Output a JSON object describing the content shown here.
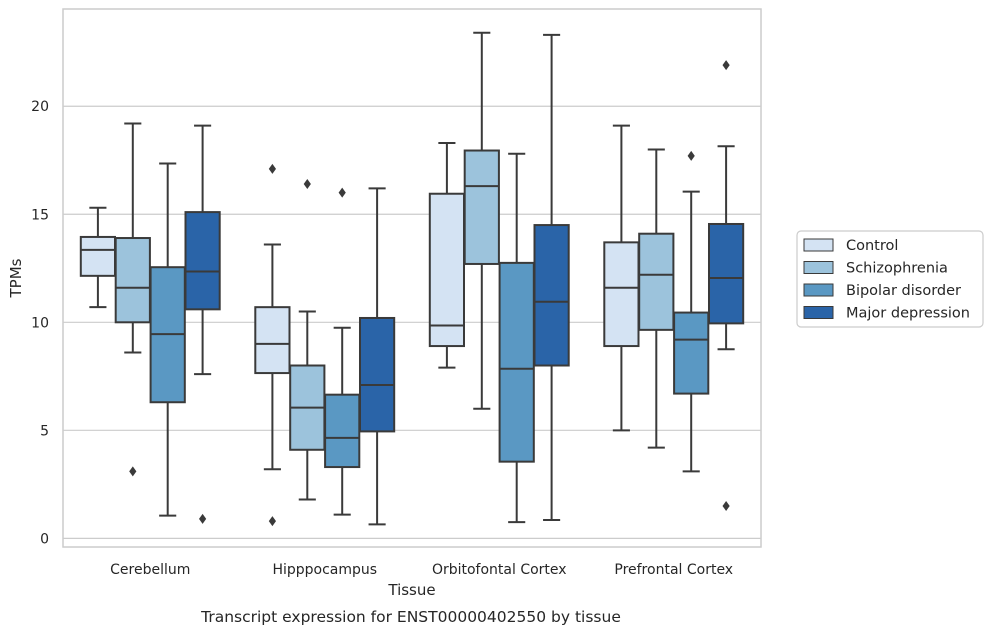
{
  "chart_data": {
    "type": "box",
    "title": "",
    "caption": "Transcript expression for ENST00000402550 by tissue",
    "xlabel": "Tissue",
    "ylabel": "TPMs",
    "ylim": [
      -0.4,
      24.5
    ],
    "yticks": [
      0,
      5,
      10,
      15,
      20
    ],
    "grid": true,
    "legend_position": "right",
    "categories": [
      "Cerebellum",
      "Hipppocampus",
      "Orbitofontal Cortex",
      "Prefrontal Cortex"
    ],
    "series": [
      {
        "name": "Control",
        "color": "#d4e3f3",
        "boxes": [
          {
            "whisker_low": 10.7,
            "q1": 12.15,
            "median": 13.35,
            "q3": 13.95,
            "whisker_high": 15.3,
            "outliers": []
          },
          {
            "whisker_low": 3.2,
            "q1": 7.65,
            "median": 9.0,
            "q3": 10.7,
            "whisker_high": 13.6,
            "outliers": [
              17.1,
              0.8
            ]
          },
          {
            "whisker_low": 7.9,
            "q1": 8.9,
            "median": 9.85,
            "q3": 15.95,
            "whisker_high": 18.3,
            "outliers": []
          },
          {
            "whisker_low": 5.0,
            "q1": 8.9,
            "median": 11.6,
            "q3": 13.7,
            "whisker_high": 19.1,
            "outliers": []
          }
        ]
      },
      {
        "name": "Schizophrenia",
        "color": "#9cc3dc",
        "boxes": [
          {
            "whisker_low": 8.6,
            "q1": 10.0,
            "median": 11.6,
            "q3": 13.9,
            "whisker_high": 19.2,
            "outliers": [
              3.1
            ]
          },
          {
            "whisker_low": 1.8,
            "q1": 4.1,
            "median": 6.05,
            "q3": 8.0,
            "whisker_high": 10.5,
            "outliers": [
              16.4
            ]
          },
          {
            "whisker_low": 6.0,
            "q1": 12.7,
            "median": 16.3,
            "q3": 17.95,
            "whisker_high": 23.4,
            "outliers": []
          },
          {
            "whisker_low": 4.2,
            "q1": 9.65,
            "median": 12.2,
            "q3": 14.1,
            "whisker_high": 18.0,
            "outliers": []
          }
        ]
      },
      {
        "name": "Bipolar disorder",
        "color": "#5a98c3",
        "boxes": [
          {
            "whisker_low": 1.05,
            "q1": 6.3,
            "median": 9.45,
            "q3": 12.55,
            "whisker_high": 17.35,
            "outliers": []
          },
          {
            "whisker_low": 1.1,
            "q1": 3.3,
            "median": 4.65,
            "q3": 6.65,
            "whisker_high": 9.75,
            "outliers": [
              16.0
            ]
          },
          {
            "whisker_low": 0.75,
            "q1": 3.55,
            "median": 7.85,
            "q3": 12.75,
            "whisker_high": 17.8,
            "outliers": []
          },
          {
            "whisker_low": 3.1,
            "q1": 6.7,
            "median": 9.2,
            "q3": 10.45,
            "whisker_high": 16.05,
            "outliers": [
              17.7
            ]
          }
        ]
      },
      {
        "name": "Major depression",
        "color": "#2a64a8",
        "boxes": [
          {
            "whisker_low": 7.6,
            "q1": 10.6,
            "median": 12.35,
            "q3": 15.1,
            "whisker_high": 19.1,
            "outliers": [
              0.9
            ]
          },
          {
            "whisker_low": 0.65,
            "q1": 4.95,
            "median": 7.1,
            "q3": 10.2,
            "whisker_high": 16.2,
            "outliers": []
          },
          {
            "whisker_low": 0.85,
            "q1": 8.0,
            "median": 10.95,
            "q3": 14.5,
            "whisker_high": 23.3,
            "outliers": []
          },
          {
            "whisker_low": 8.75,
            "q1": 9.95,
            "median": 12.05,
            "q3": 14.55,
            "whisker_high": 18.15,
            "outliers": [
              21.9,
              1.5
            ]
          }
        ]
      }
    ]
  }
}
